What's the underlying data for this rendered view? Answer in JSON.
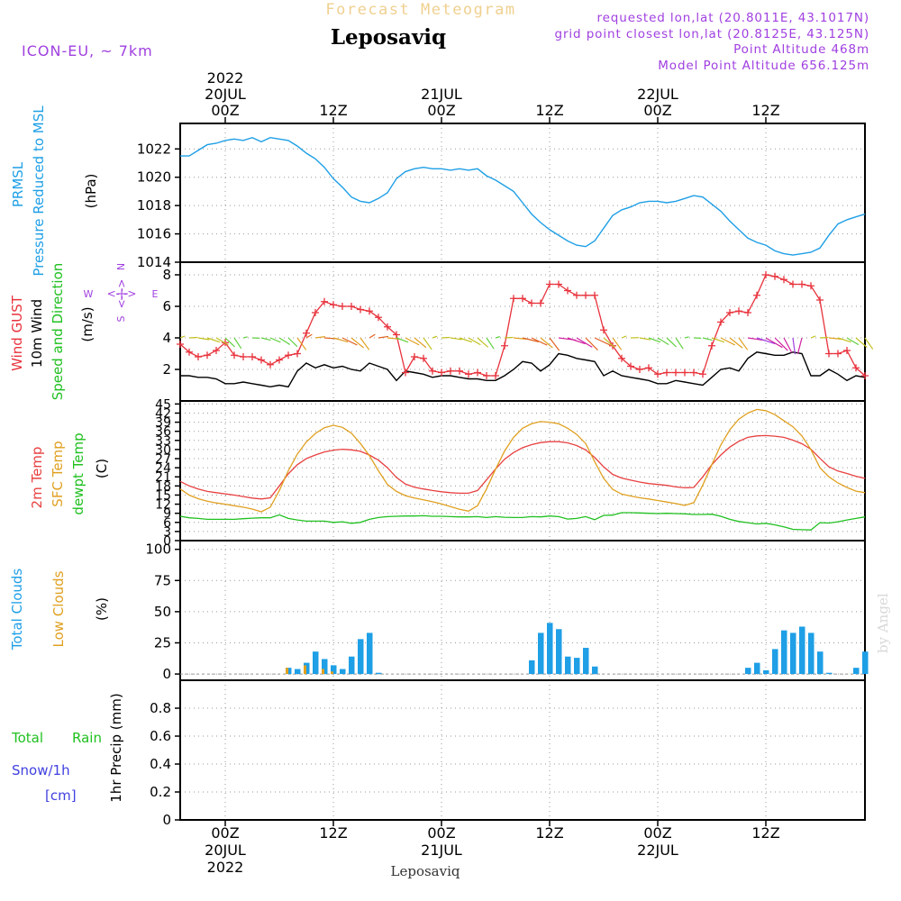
{
  "header": {
    "product": "Forecast Meteogram",
    "location": "Leposaviq",
    "model": "ICON-EU, ~ 7km",
    "requested": "requested lon,lat (20.8011E, 43.1017N)",
    "grid_point": "grid point closest lon,lat (20.8125E, 43.125N)",
    "point_altitude": "Point Altitude 468m",
    "model_altitude": "Model Point Altitude 656.125m",
    "credit": "by Angel",
    "footer": "Leposaviq"
  },
  "colors": {
    "pressure": "#1e9fe6",
    "gust": "#e8323c",
    "wind": "#000000",
    "temp2m": "#e84040",
    "sfc": "#e0a020",
    "dewpt": "#20c020",
    "total_cloud": "#1e9fe6",
    "low_cloud": "#e0a020",
    "rain": "#20c020",
    "snow": "#4040e0",
    "purple": "#a040e0"
  },
  "time_axis": {
    "top": [
      {
        "t": 0,
        "lines": [
          "2022",
          "20JUL",
          "00Z"
        ]
      },
      {
        "t": 12,
        "lines": [
          "12Z"
        ]
      },
      {
        "t": 24,
        "lines": [
          "21JUL",
          "00Z"
        ]
      },
      {
        "t": 36,
        "lines": [
          "12Z"
        ]
      },
      {
        "t": 48,
        "lines": [
          "22JUL",
          "00Z"
        ]
      },
      {
        "t": 60,
        "lines": [
          "12Z"
        ]
      }
    ],
    "bottom": [
      {
        "t": 0,
        "lines": [
          "00Z",
          "20JUL",
          "2022"
        ]
      },
      {
        "t": 12,
        "lines": [
          "12Z"
        ]
      },
      {
        "t": 24,
        "lines": [
          "00Z",
          "21JUL"
        ]
      },
      {
        "t": 36,
        "lines": [
          "12Z"
        ]
      },
      {
        "t": 48,
        "lines": [
          "00Z",
          "22JUL"
        ]
      },
      {
        "t": 60,
        "lines": [
          "12Z"
        ]
      }
    ]
  },
  "panel_labels": {
    "pressure": {
      "l1": "PRMSL",
      "l2": "Pressure Reduced to MSL",
      "unit": "(hPa)"
    },
    "wind": {
      "l1": "Wind GUST",
      "l2": "10m Wind",
      "l3": "Speed and Direction",
      "unit": "(m/s)",
      "compass_n": "N",
      "compass_s": "S",
      "compass_w": "W",
      "compass_e": "E"
    },
    "temp": {
      "l1": "2m Temp",
      "l2": "SFC Temp",
      "l3": "dewpt Temp",
      "unit": "(C)"
    },
    "clouds": {
      "l1": "Total Clouds",
      "l2": "Low Clouds",
      "unit": "(%)"
    },
    "precip": {
      "l1": "Total",
      "l1b": "Rain",
      "l2": "Snow/1h",
      "l3": "[cm]",
      "unit": "1hr Precip (mm)"
    }
  },
  "chart_data": [
    {
      "type": "line",
      "id": "pressure",
      "title": "PRMSL Pressure Reduced to MSL",
      "ylabel": "(hPa)",
      "xlim": [
        -5,
        71
      ],
      "ylim": [
        1014,
        1023.8
      ],
      "yticks": [
        1014,
        1016,
        1018,
        1020,
        1022
      ],
      "series": [
        {
          "name": "PRMSL",
          "x": [
            -5,
            -4,
            -3,
            -2,
            -1,
            0,
            1,
            2,
            3,
            4,
            5,
            6,
            7,
            8,
            9,
            10,
            11,
            12,
            13,
            14,
            15,
            16,
            17,
            18,
            19,
            20,
            21,
            22,
            23,
            24,
            25,
            26,
            27,
            28,
            29,
            30,
            31,
            32,
            33,
            34,
            35,
            36,
            37,
            38,
            39,
            40,
            41,
            42,
            43,
            44,
            45,
            46,
            47,
            48,
            49,
            50,
            51,
            52,
            53,
            54,
            55,
            56,
            57,
            58,
            59,
            60,
            61,
            62,
            63,
            64,
            65,
            66,
            67,
            68,
            69,
            70,
            71
          ],
          "values": [
            1021.5,
            1021.5,
            1021.9,
            1022.3,
            1022.4,
            1022.6,
            1022.7,
            1022.6,
            1022.8,
            1022.5,
            1022.8,
            1022.7,
            1022.6,
            1022.2,
            1021.7,
            1021.3,
            1020.7,
            1019.9,
            1019.3,
            1018.6,
            1018.3,
            1018.2,
            1018.5,
            1018.9,
            1019.9,
            1020.4,
            1020.6,
            1020.7,
            1020.6,
            1020.6,
            1020.5,
            1020.6,
            1020.5,
            1020.6,
            1020.1,
            1019.8,
            1019.4,
            1019.0,
            1018.2,
            1017.4,
            1016.8,
            1016.3,
            1015.9,
            1015.5,
            1015.2,
            1015.1,
            1015.5,
            1016.4,
            1017.3,
            1017.7,
            1017.9,
            1018.2,
            1018.3,
            1018.3,
            1018.2,
            1018.3,
            1018.5,
            1018.7,
            1018.6,
            1018.1,
            1017.6,
            1016.9,
            1016.3,
            1015.7,
            1015.4,
            1015.2,
            1014.8,
            1014.6,
            1014.5,
            1014.6,
            1014.7,
            1015.0,
            1015.9,
            1016.7,
            1017.0,
            1017.2,
            1017.4
          ]
        }
      ]
    },
    {
      "type": "line",
      "id": "wind",
      "title": "Wind GUST / 10m Wind Speed and Direction",
      "ylabel": "(m/s)",
      "xlim": [
        -5,
        71
      ],
      "ylim": [
        0,
        8.8
      ],
      "yticks": [
        2,
        4,
        6,
        8
      ],
      "x": [
        -5,
        -4,
        -3,
        -2,
        -1,
        0,
        1,
        2,
        3,
        4,
        5,
        6,
        7,
        8,
        9,
        10,
        11,
        12,
        13,
        14,
        15,
        16,
        17,
        18,
        19,
        20,
        21,
        22,
        23,
        24,
        25,
        26,
        27,
        28,
        29,
        30,
        31,
        32,
        33,
        34,
        35,
        36,
        37,
        38,
        39,
        40,
        41,
        42,
        43,
        44,
        45,
        46,
        47,
        48,
        49,
        50,
        51,
        52,
        53,
        54,
        55,
        56,
        57,
        58,
        59,
        60,
        61,
        62,
        63,
        64,
        65,
        66,
        67,
        68,
        69,
        70,
        71
      ],
      "series": [
        {
          "name": "Wind GUST",
          "values": [
            3.6,
            3.1,
            2.8,
            2.9,
            3.2,
            3.7,
            2.9,
            2.8,
            2.8,
            2.6,
            2.3,
            2.6,
            2.9,
            3.0,
            4.3,
            5.6,
            6.3,
            6.1,
            6.0,
            6.0,
            5.8,
            5.7,
            5.3,
            4.7,
            4.2,
            1.8,
            2.8,
            2.7,
            1.9,
            1.8,
            1.9,
            1.9,
            1.7,
            1.8,
            1.6,
            1.6,
            3.5,
            6.5,
            6.5,
            6.2,
            6.2,
            7.4,
            7.4,
            7.0,
            6.7,
            6.7,
            6.7,
            4.5,
            3.5,
            2.7,
            2.2,
            2.0,
            2.1,
            1.7,
            1.8,
            1.8,
            1.8,
            1.8,
            1.7,
            3.5,
            5.0,
            5.6,
            5.7,
            5.6,
            6.7,
            8.0,
            7.9,
            7.7,
            7.4,
            7.4,
            7.3,
            6.4,
            3.0,
            3.0,
            3.2,
            2.1,
            1.6
          ]
        },
        {
          "name": "10m Wind",
          "values": [
            1.6,
            1.6,
            1.5,
            1.5,
            1.4,
            1.1,
            1.1,
            1.2,
            1.1,
            1.0,
            0.9,
            1.0,
            0.9,
            1.9,
            2.4,
            2.1,
            2.3,
            2.1,
            2.2,
            2.0,
            1.9,
            2.4,
            2.2,
            2.0,
            1.3,
            1.9,
            1.8,
            1.7,
            1.5,
            1.6,
            1.6,
            1.5,
            1.4,
            1.4,
            1.3,
            1.3,
            1.6,
            2.0,
            2.5,
            2.4,
            1.9,
            2.3,
            3.0,
            2.9,
            2.7,
            2.6,
            2.5,
            1.6,
            1.9,
            1.6,
            1.5,
            1.4,
            1.3,
            1.1,
            1.1,
            1.3,
            1.2,
            1.1,
            1.0,
            1.5,
            2.0,
            2.1,
            1.9,
            2.7,
            3.1,
            3.0,
            2.9,
            2.9,
            3.1,
            3.0,
            1.6,
            1.6,
            2.0,
            1.7,
            1.3,
            1.6,
            1.5
          ]
        }
      ]
    },
    {
      "type": "line",
      "id": "temperature",
      "title": "2m Temp / SFC Temp / dewpt Temp",
      "ylabel": "(C)",
      "xlim": [
        -5,
        71
      ],
      "ylim": [
        0,
        46
      ],
      "yticks": [
        0,
        3,
        6,
        9,
        12,
        15,
        18,
        21,
        24,
        27,
        30,
        33,
        36,
        39,
        42,
        45
      ],
      "x": [
        -5,
        -4,
        -3,
        -2,
        -1,
        0,
        1,
        2,
        3,
        4,
        5,
        6,
        7,
        8,
        9,
        10,
        11,
        12,
        13,
        14,
        15,
        16,
        17,
        18,
        19,
        20,
        21,
        22,
        23,
        24,
        25,
        26,
        27,
        28,
        29,
        30,
        31,
        32,
        33,
        34,
        35,
        36,
        37,
        38,
        39,
        40,
        41,
        42,
        43,
        44,
        45,
        46,
        47,
        48,
        49,
        50,
        51,
        52,
        53,
        54,
        55,
        56,
        57,
        58,
        59,
        60,
        61,
        62,
        63,
        64,
        65,
        66,
        67,
        68,
        69,
        70,
        71
      ],
      "series": [
        {
          "name": "2m Temp",
          "values": [
            19.5,
            18.0,
            17.0,
            16.2,
            15.8,
            15.4,
            15.0,
            14.5,
            14.0,
            13.7,
            14.1,
            18.0,
            22.0,
            25.0,
            27.0,
            28.2,
            29.2,
            29.8,
            30.1,
            29.9,
            29.4,
            28.2,
            26.5,
            24.0,
            20.8,
            18.6,
            17.6,
            17.0,
            16.5,
            16.1,
            15.8,
            15.6,
            15.6,
            16.5,
            20.0,
            23.6,
            26.8,
            29.0,
            30.6,
            31.6,
            32.3,
            32.6,
            32.6,
            32.2,
            31.3,
            29.9,
            27.4,
            24.3,
            21.8,
            20.6,
            19.9,
            19.3,
            18.8,
            18.5,
            18.2,
            17.7,
            17.4,
            17.5,
            21.0,
            25.0,
            28.2,
            30.8,
            32.7,
            34.0,
            34.5,
            34.6,
            34.4,
            34.0,
            33.1,
            31.9,
            30.1,
            27.1,
            24.3,
            22.9,
            22.1,
            21.2,
            20.5
          ]
        },
        {
          "name": "SFC Temp",
          "values": [
            17.0,
            15.0,
            13.8,
            13.0,
            12.4,
            12.0,
            11.5,
            11.0,
            10.4,
            9.5,
            11.0,
            16.5,
            23.0,
            28.5,
            32.5,
            35.3,
            37.2,
            38.0,
            37.3,
            35.4,
            32.0,
            28.0,
            23.0,
            18.5,
            16.2,
            14.8,
            14.0,
            13.4,
            12.8,
            12.1,
            11.2,
            10.3,
            9.7,
            11.5,
            17.0,
            23.5,
            29.5,
            34.0,
            37.0,
            38.5,
            39.2,
            39.0,
            38.5,
            37.0,
            35.0,
            32.0,
            26.0,
            20.5,
            16.9,
            15.3,
            14.7,
            14.1,
            13.7,
            13.2,
            12.7,
            12.2,
            11.6,
            12.5,
            18.3,
            25.0,
            31.5,
            36.5,
            40.0,
            42.0,
            43.2,
            42.8,
            41.5,
            39.5,
            37.5,
            34.5,
            30.0,
            24.0,
            21.0,
            19.0,
            17.5,
            16.3,
            15.8
          ]
        },
        {
          "name": "dewpt Temp",
          "values": [
            8.0,
            7.5,
            7.3,
            7.0,
            7.0,
            7.0,
            7.0,
            7.2,
            7.4,
            7.5,
            7.5,
            8.5,
            7.3,
            6.8,
            6.4,
            6.4,
            6.4,
            6.0,
            6.2,
            5.7,
            6.0,
            7.0,
            7.6,
            7.9,
            8.0,
            8.1,
            8.1,
            8.2,
            8.0,
            8.0,
            7.9,
            7.8,
            7.8,
            7.9,
            7.6,
            7.9,
            7.7,
            7.6,
            7.6,
            7.9,
            7.8,
            8.1,
            7.9,
            7.1,
            7.3,
            7.9,
            6.9,
            8.3,
            8.4,
            9.2,
            9.2,
            9.1,
            9.0,
            8.9,
            9.0,
            8.9,
            8.8,
            8.6,
            8.6,
            8.7,
            8.0,
            7.0,
            6.3,
            5.9,
            5.5,
            5.7,
            5.2,
            4.5,
            3.7,
            3.6,
            3.5,
            5.9,
            5.8,
            6.2,
            6.8,
            7.3,
            7.8
          ]
        }
      ]
    },
    {
      "type": "bar",
      "id": "clouds",
      "title": "Total Clouds / Low Clouds",
      "ylabel": "(%)",
      "xlim": [
        -5,
        71
      ],
      "ylim": [
        -5,
        107
      ],
      "yticks": [
        0,
        25,
        50,
        75,
        100
      ],
      "series": [
        {
          "name": "Total Clouds",
          "points": [
            [
              7,
              5
            ],
            [
              8,
              4
            ],
            [
              9,
              9
            ],
            [
              10,
              18
            ],
            [
              11,
              12
            ],
            [
              12,
              7
            ],
            [
              13,
              4
            ],
            [
              14,
              14
            ],
            [
              15,
              28
            ],
            [
              16,
              33
            ],
            [
              17,
              1
            ],
            [
              34,
              11
            ],
            [
              35,
              33
            ],
            [
              36,
              41
            ],
            [
              37,
              36
            ],
            [
              38,
              14
            ],
            [
              39,
              13
            ],
            [
              40,
              21
            ],
            [
              41,
              6
            ],
            [
              58,
              5
            ],
            [
              59,
              9
            ],
            [
              60,
              3
            ],
            [
              61,
              20
            ],
            [
              62,
              35
            ],
            [
              63,
              33
            ],
            [
              64,
              38
            ],
            [
              65,
              33
            ],
            [
              66,
              18
            ],
            [
              67,
              1
            ],
            [
              70,
              5
            ],
            [
              71,
              18
            ]
          ]
        },
        {
          "name": "Low Clouds",
          "points": [
            [
              7,
              5
            ],
            [
              9,
              7
            ],
            [
              11,
              4
            ],
            [
              12,
              2
            ]
          ]
        }
      ]
    },
    {
      "type": "bar",
      "id": "precip",
      "title": "Total Rain / Snow/1h [cm]",
      "ylabel": "1hr Precip (mm)",
      "xlim": [
        -5,
        71
      ],
      "ylim": [
        0,
        1.0
      ],
      "yticks": [
        0,
        0.2,
        0.4,
        0.6,
        0.8
      ],
      "series": [
        {
          "name": "Total Rain",
          "points": []
        },
        {
          "name": "Snow/1h",
          "points": []
        }
      ]
    }
  ]
}
